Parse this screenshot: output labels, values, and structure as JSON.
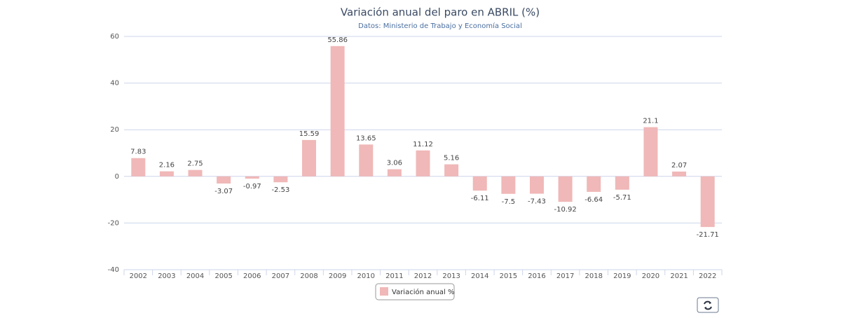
{
  "chart_data": {
    "type": "bar",
    "title": "Variación anual del paro en ABRIL (%)",
    "subtitle": "Datos: Ministerio de Trabajo y Economía Social",
    "categories": [
      "2002",
      "2003",
      "2004",
      "2005",
      "2006",
      "2007",
      "2008",
      "2009",
      "2010",
      "2011",
      "2012",
      "2013",
      "2014",
      "2015",
      "2016",
      "2017",
      "2018",
      "2019",
      "2020",
      "2021",
      "2022"
    ],
    "series": [
      {
        "name": "Variación anual %",
        "color": "#f0b8b8",
        "values": [
          7.83,
          2.16,
          2.75,
          -3.07,
          -0.97,
          -2.53,
          15.59,
          55.86,
          13.65,
          3.06,
          11.12,
          5.16,
          -6.11,
          -7.5,
          -7.43,
          -10.92,
          -6.64,
          -5.71,
          21.1,
          2.07,
          -21.71
        ]
      }
    ],
    "ylim": [
      -40,
      60
    ],
    "yticks": [
      -40,
      -20,
      0,
      20,
      40,
      60
    ],
    "grid": true
  }
}
